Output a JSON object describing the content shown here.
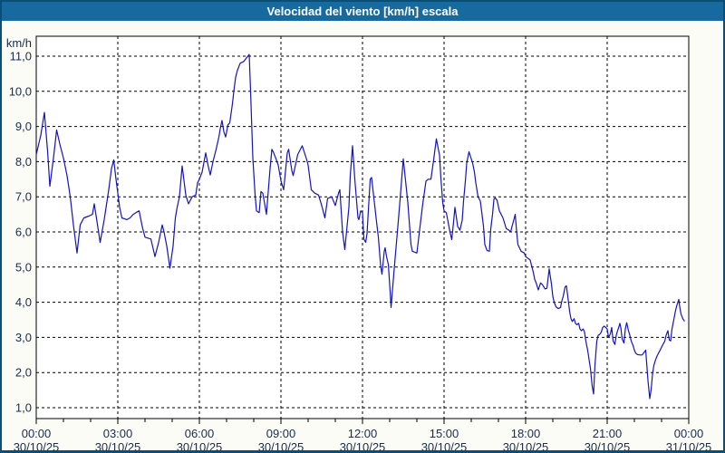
{
  "window": {
    "title": "Velocidad del viento [km/h] escala"
  },
  "colors": {
    "titlebar_bg": "#176a9f",
    "title_text": "#ffffff",
    "frame": "#0b4e75",
    "page_bg": "#fbfcf6",
    "plot_bg": "#ffffff",
    "grid": "#000000",
    "axis": "#000000",
    "label_text": "#1a2b4c",
    "line": "#1515b5"
  },
  "chart_data": {
    "type": "line",
    "title": "Velocidad del viento [km/h] escala",
    "ylabel": "km/h",
    "ylim": [
      1.0,
      11.0
    ],
    "grid": "dashed",
    "legend": "none",
    "y_ticks": {
      "values": [
        1,
        2,
        3,
        4,
        5,
        6,
        7,
        8,
        9,
        10,
        11
      ],
      "labels": [
        "1,0",
        "2,0",
        "3,0",
        "4,0",
        "5,0",
        "6,0",
        "7,0",
        "8,0",
        "9,0",
        "10,0",
        "11,0"
      ]
    },
    "x_range_minutes": [
      0,
      1440
    ],
    "minor_tick_minutes": 60,
    "x_ticks": [
      {
        "minutes": 0,
        "time": "00:00",
        "date": "30/10/25"
      },
      {
        "minutes": 180,
        "time": "03:00",
        "date": "30/10/25"
      },
      {
        "minutes": 360,
        "time": "06:00",
        "date": "30/10/25"
      },
      {
        "minutes": 540,
        "time": "09:00",
        "date": "30/10/25"
      },
      {
        "minutes": 720,
        "time": "12:00",
        "date": "30/10/25"
      },
      {
        "minutes": 900,
        "time": "15:00",
        "date": "30/10/25"
      },
      {
        "minutes": 1080,
        "time": "18:00",
        "date": "30/10/25"
      },
      {
        "minutes": 1260,
        "time": "21:00",
        "date": "30/10/25"
      },
      {
        "minutes": 1440,
        "time": "00:00",
        "date": "31/10/25"
      }
    ],
    "series": [
      {
        "name": "Velocidad del viento [km/h]",
        "color": "#1515b5",
        "points": [
          [
            0,
            8.2
          ],
          [
            10,
            8.75
          ],
          [
            18,
            9.4
          ],
          [
            25,
            8.3
          ],
          [
            30,
            7.3
          ],
          [
            38,
            8.1
          ],
          [
            45,
            8.9
          ],
          [
            52,
            8.5
          ],
          [
            60,
            8.1
          ],
          [
            68,
            7.6
          ],
          [
            75,
            7.0
          ],
          [
            82,
            6.2
          ],
          [
            90,
            5.4
          ],
          [
            97,
            6.2
          ],
          [
            105,
            6.4
          ],
          [
            116,
            6.45
          ],
          [
            124,
            6.5
          ],
          [
            128,
            6.8
          ],
          [
            134,
            6.3
          ],
          [
            141,
            5.7
          ],
          [
            150,
            6.35
          ],
          [
            160,
            7.2
          ],
          [
            166,
            7.8
          ],
          [
            171,
            8.05
          ],
          [
            176,
            7.5
          ],
          [
            180,
            7.1
          ],
          [
            184,
            6.7
          ],
          [
            189,
            6.4
          ],
          [
            200,
            6.35
          ],
          [
            207,
            6.4
          ],
          [
            214,
            6.5
          ],
          [
            220,
            6.55
          ],
          [
            227,
            6.6
          ],
          [
            234,
            6.15
          ],
          [
            240,
            5.85
          ],
          [
            253,
            5.8
          ],
          [
            262,
            5.3
          ],
          [
            270,
            5.7
          ],
          [
            278,
            6.2
          ],
          [
            282,
            6.0
          ],
          [
            288,
            5.6
          ],
          [
            295,
            4.97
          ],
          [
            302,
            5.6
          ],
          [
            307,
            6.4
          ],
          [
            311,
            6.7
          ],
          [
            316,
            7.0
          ],
          [
            322,
            7.88
          ],
          [
            330,
            7.05
          ],
          [
            336,
            6.8
          ],
          [
            344,
            7.0
          ],
          [
            352,
            7.05
          ],
          [
            356,
            7.4
          ],
          [
            360,
            7.5
          ],
          [
            366,
            7.7
          ],
          [
            374,
            8.25
          ],
          [
            379,
            7.9
          ],
          [
            384,
            7.62
          ],
          [
            390,
            8.0
          ],
          [
            397,
            8.35
          ],
          [
            403,
            8.7
          ],
          [
            407,
            9.0
          ],
          [
            410,
            9.17
          ],
          [
            414,
            8.85
          ],
          [
            418,
            8.7
          ],
          [
            423,
            9.05
          ],
          [
            427,
            9.1
          ],
          [
            433,
            9.65
          ],
          [
            436,
            10.0
          ],
          [
            440,
            10.4
          ],
          [
            444,
            10.6
          ],
          [
            450,
            10.8
          ],
          [
            458,
            10.85
          ],
          [
            464,
            10.95
          ],
          [
            470,
            11.05
          ],
          [
            473,
            10.0
          ],
          [
            478,
            8.1
          ],
          [
            483,
            7.05
          ],
          [
            486,
            6.6
          ],
          [
            492,
            6.55
          ],
          [
            496,
            7.15
          ],
          [
            500,
            7.1
          ],
          [
            508,
            6.5
          ],
          [
            516,
            7.8
          ],
          [
            520,
            8.35
          ],
          [
            524,
            8.25
          ],
          [
            530,
            8.05
          ],
          [
            534,
            7.9
          ],
          [
            540,
            7.45
          ],
          [
            546,
            7.2
          ],
          [
            554,
            8.25
          ],
          [
            557,
            8.35
          ],
          [
            564,
            7.75
          ],
          [
            567,
            7.6
          ],
          [
            577,
            8.2
          ],
          [
            587,
            8.45
          ],
          [
            597,
            8.05
          ],
          [
            600,
            7.9
          ],
          [
            607,
            7.2
          ],
          [
            615,
            7.1
          ],
          [
            623,
            7.05
          ],
          [
            630,
            6.75
          ],
          [
            637,
            6.4
          ],
          [
            643,
            6.95
          ],
          [
            652,
            7.0
          ],
          [
            660,
            6.75
          ],
          [
            667,
            7.1
          ],
          [
            670,
            7.2
          ],
          [
            676,
            6.0
          ],
          [
            681,
            5.5
          ],
          [
            690,
            6.7
          ],
          [
            693,
            7.6
          ],
          [
            698,
            8.45
          ],
          [
            703,
            7.5
          ],
          [
            710,
            6.4
          ],
          [
            712,
            6.35
          ],
          [
            716,
            6.6
          ],
          [
            720,
            6.55
          ],
          [
            723,
            5.8
          ],
          [
            727,
            5.7
          ],
          [
            730,
            5.95
          ],
          [
            737,
            7.5
          ],
          [
            740,
            7.55
          ],
          [
            747,
            6.75
          ],
          [
            750,
            6.4
          ],
          [
            755,
            5.85
          ],
          [
            760,
            5.05
          ],
          [
            763,
            4.8
          ],
          [
            768,
            5.45
          ],
          [
            770,
            5.55
          ],
          [
            773,
            5.3
          ],
          [
            777,
            5.08
          ],
          [
            781,
            4.3
          ],
          [
            783,
            3.85
          ],
          [
            790,
            4.95
          ],
          [
            797,
            6.0
          ],
          [
            803,
            6.93
          ],
          [
            810,
            8.08
          ],
          [
            820,
            6.84
          ],
          [
            827,
            5.64
          ],
          [
            830,
            5.45
          ],
          [
            840,
            5.4
          ],
          [
            847,
            6.16
          ],
          [
            853,
            6.8
          ],
          [
            860,
            7.44
          ],
          [
            865,
            7.5
          ],
          [
            871,
            7.5
          ],
          [
            877,
            8.05
          ],
          [
            883,
            8.65
          ],
          [
            890,
            8.18
          ],
          [
            893,
            7.53
          ],
          [
            897,
            6.84
          ],
          [
            900,
            6.6
          ],
          [
            905,
            6.55
          ],
          [
            913,
            6.0
          ],
          [
            917,
            5.78
          ],
          [
            920,
            6.16
          ],
          [
            924,
            6.7
          ],
          [
            930,
            6.16
          ],
          [
            935,
            6.05
          ],
          [
            940,
            6.33
          ],
          [
            943,
            6.88
          ],
          [
            947,
            7.44
          ],
          [
            950,
            7.96
          ],
          [
            955,
            8.28
          ],
          [
            963,
            7.96
          ],
          [
            967,
            7.7
          ],
          [
            970,
            7.4
          ],
          [
            975,
            7.0
          ],
          [
            980,
            6.88
          ],
          [
            983,
            6.58
          ],
          [
            987,
            6.16
          ],
          [
            990,
            5.64
          ],
          [
            995,
            5.47
          ],
          [
            1000,
            5.45
          ],
          [
            1003,
            6.08
          ],
          [
            1007,
            6.5
          ],
          [
            1010,
            6.93
          ],
          [
            1013,
            6.97
          ],
          [
            1017,
            6.9
          ],
          [
            1022,
            6.6
          ],
          [
            1030,
            6.4
          ],
          [
            1037,
            6.1
          ],
          [
            1043,
            6.05
          ],
          [
            1047,
            6.0
          ],
          [
            1050,
            6.16
          ],
          [
            1053,
            6.3
          ],
          [
            1057,
            6.5
          ],
          [
            1060,
            6.03
          ],
          [
            1063,
            5.64
          ],
          [
            1070,
            5.45
          ],
          [
            1077,
            5.4
          ],
          [
            1080,
            5.3
          ],
          [
            1090,
            5.2
          ],
          [
            1097,
            4.85
          ],
          [
            1100,
            4.65
          ],
          [
            1103,
            4.56
          ],
          [
            1108,
            4.35
          ],
          [
            1113,
            4.55
          ],
          [
            1117,
            4.5
          ],
          [
            1123,
            4.38
          ],
          [
            1127,
            4.4
          ],
          [
            1132,
            4.95
          ],
          [
            1137,
            4.52
          ],
          [
            1140,
            4.17
          ],
          [
            1143,
            4.0
          ],
          [
            1147,
            3.87
          ],
          [
            1152,
            3.82
          ],
          [
            1157,
            3.85
          ],
          [
            1160,
            4.04
          ],
          [
            1163,
            4.17
          ],
          [
            1167,
            4.43
          ],
          [
            1170,
            4.47
          ],
          [
            1173,
            4.17
          ],
          [
            1177,
            3.75
          ],
          [
            1180,
            3.53
          ],
          [
            1183,
            3.45
          ],
          [
            1187,
            3.53
          ],
          [
            1190,
            3.4
          ],
          [
            1193,
            3.36
          ],
          [
            1197,
            3.4
          ],
          [
            1200,
            3.24
          ],
          [
            1203,
            3.19
          ],
          [
            1207,
            3.24
          ],
          [
            1210,
            3.15
          ],
          [
            1213,
            2.89
          ],
          [
            1217,
            2.63
          ],
          [
            1220,
            2.37
          ],
          [
            1223,
            2.12
          ],
          [
            1227,
            1.6
          ],
          [
            1230,
            1.39
          ],
          [
            1233,
            2.21
          ],
          [
            1237,
            2.89
          ],
          [
            1240,
            3.06
          ],
          [
            1243,
            3.08
          ],
          [
            1247,
            3.15
          ],
          [
            1250,
            3.28
          ],
          [
            1253,
            3.32
          ],
          [
            1257,
            3.28
          ],
          [
            1260,
            3.24
          ],
          [
            1263,
            3.0
          ],
          [
            1267,
            3.1
          ],
          [
            1270,
            3.28
          ],
          [
            1273,
            2.9
          ],
          [
            1277,
            2.8
          ],
          [
            1280,
            3.06
          ],
          [
            1283,
            3.19
          ],
          [
            1287,
            3.35
          ],
          [
            1288,
            3.4
          ],
          [
            1290,
            3.28
          ],
          [
            1293,
            2.96
          ],
          [
            1297,
            2.84
          ],
          [
            1300,
            3.24
          ],
          [
            1303,
            3.42
          ],
          [
            1307,
            3.19
          ],
          [
            1310,
            3.06
          ],
          [
            1313,
            2.9
          ],
          [
            1317,
            2.77
          ],
          [
            1320,
            2.64
          ],
          [
            1323,
            2.55
          ],
          [
            1327,
            2.51
          ],
          [
            1333,
            2.5
          ],
          [
            1337,
            2.5
          ],
          [
            1340,
            2.55
          ],
          [
            1343,
            2.6
          ],
          [
            1345,
            2.64
          ],
          [
            1347,
            2.29
          ],
          [
            1350,
            1.77
          ],
          [
            1354,
            1.26
          ],
          [
            1357,
            1.52
          ],
          [
            1360,
            1.95
          ],
          [
            1363,
            2.2
          ],
          [
            1367,
            2.37
          ],
          [
            1370,
            2.47
          ],
          [
            1373,
            2.55
          ],
          [
            1377,
            2.64
          ],
          [
            1380,
            2.72
          ],
          [
            1383,
            2.8
          ],
          [
            1387,
            2.89
          ],
          [
            1390,
            3.06
          ],
          [
            1394,
            3.19
          ],
          [
            1397,
            2.93
          ],
          [
            1400,
            2.9
          ],
          [
            1403,
            3.24
          ],
          [
            1407,
            3.5
          ],
          [
            1410,
            3.71
          ],
          [
            1413,
            3.88
          ],
          [
            1418,
            4.08
          ],
          [
            1420,
            3.88
          ],
          [
            1423,
            3.66
          ],
          [
            1427,
            3.53
          ],
          [
            1430,
            3.47
          ]
        ]
      }
    ]
  }
}
